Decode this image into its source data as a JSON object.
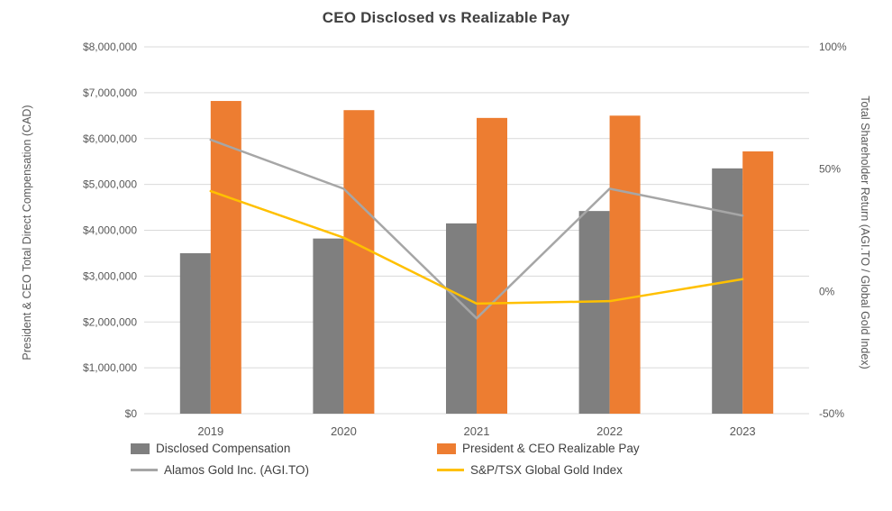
{
  "chart_data": {
    "type": "combo",
    "title": "CEO Disclosed vs Realizable Pay",
    "categories": [
      "2019",
      "2020",
      "2021",
      "2022",
      "2023"
    ],
    "left_axis": {
      "title": "President & CEO Total Direct Compensation (CAD)",
      "min": 0,
      "max": 8000000,
      "ticks": [
        0,
        1000000,
        2000000,
        3000000,
        4000000,
        5000000,
        6000000,
        7000000,
        8000000
      ],
      "tick_format": "currency"
    },
    "right_axis": {
      "title": "Total Shareholder Return (AGI.TO / Global Gold Index)",
      "min": -50,
      "max": 100,
      "ticks": [
        100,
        50,
        0,
        -50
      ],
      "tick_format": "percent"
    },
    "bar_series": [
      {
        "name": "Disclosed Compensation",
        "color": "#7F7F7F",
        "axis": "left",
        "values": [
          3500000,
          3820000,
          4150000,
          4420000,
          5350000
        ]
      },
      {
        "name": "President & CEO Realizable Pay",
        "color": "#ED7D31",
        "axis": "left",
        "values": [
          6820000,
          6620000,
          6450000,
          6500000,
          5720000
        ]
      }
    ],
    "line_series": [
      {
        "name": "Alamos Gold Inc. (AGI.TO)",
        "color": "#A6A6A6",
        "axis": "right",
        "values": [
          62,
          42,
          -11,
          42,
          31
        ]
      },
      {
        "name": "S&P/TSX Global Gold Index",
        "color": "#FFC000",
        "axis": "right",
        "values": [
          41,
          22,
          -5,
          -4,
          5
        ]
      }
    ],
    "grid": true,
    "gridline_color": "#D9D9D9",
    "legend_position": "bottom"
  }
}
